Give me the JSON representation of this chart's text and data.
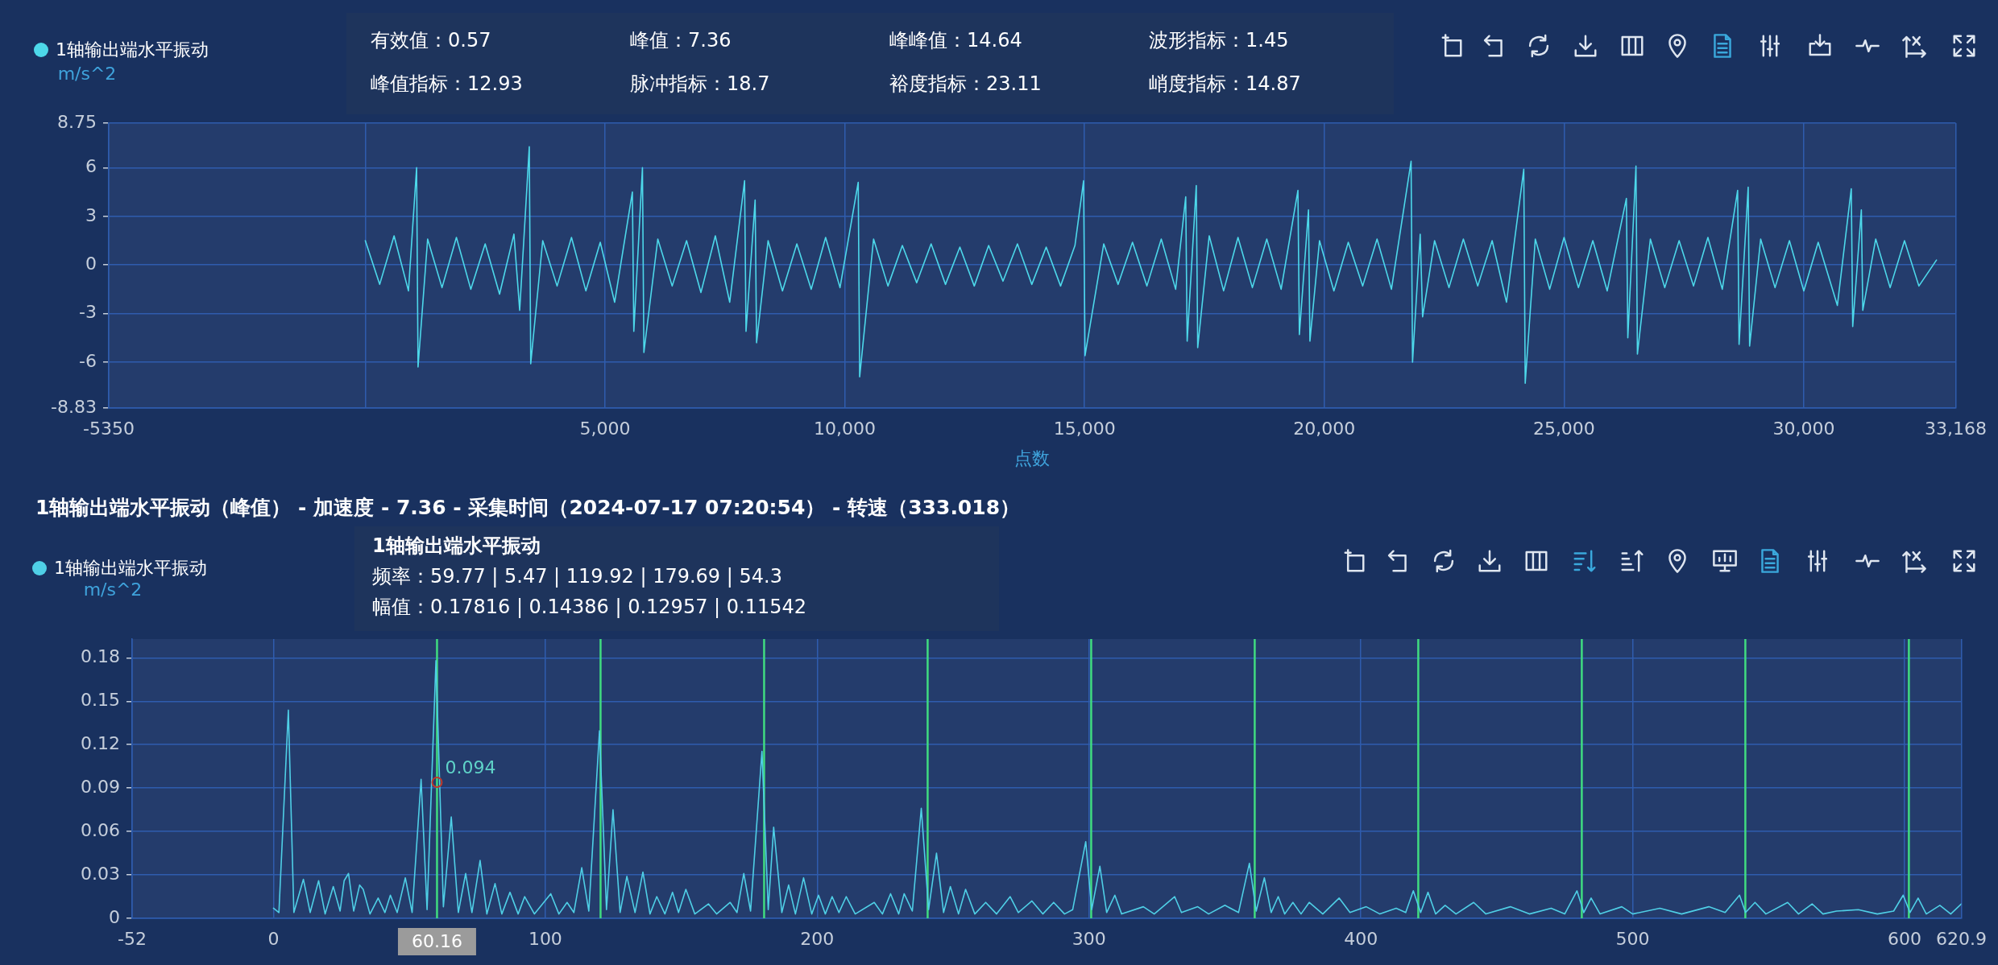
{
  "chart_data": [
    {
      "type": "line",
      "legend": "top left",
      "ylabel": "m/s^2",
      "xlabel": "点数",
      "marker": "none",
      "grid": true,
      "xlim": [
        -5350,
        33168
      ],
      "xticks": [
        -5350,
        {
          "value": 0,
          "label": null
        },
        {
          "value": 5000,
          "label": "5,000"
        },
        {
          "value": 10000,
          "label": "10,000"
        },
        {
          "value": 15000,
          "label": "15,000"
        },
        {
          "value": 20000,
          "label": "20,000"
        },
        {
          "value": 25000,
          "label": "25,000"
        },
        {
          "value": 30000,
          "label": "30,000"
        },
        {
          "value": 33168,
          "label": "33,168"
        }
      ],
      "ylim": [
        -8.83,
        8.75
      ],
      "yticks": [
        -8.83,
        -6,
        -3,
        0,
        3,
        6,
        8.75
      ],
      "x": [
        0,
        300,
        600,
        900,
        1070,
        1100,
        1300,
        1600,
        1900,
        2200,
        2500,
        2800,
        3100,
        3220,
        3420,
        3450,
        3700,
        4000,
        4300,
        4600,
        4900,
        5200,
        5570,
        5600,
        5780,
        5810,
        6100,
        6400,
        6700,
        7000,
        7300,
        7600,
        7910,
        7940,
        8130,
        8160,
        8400,
        8700,
        9000,
        9300,
        9600,
        9900,
        10280,
        10310,
        10600,
        10900,
        11200,
        11500,
        11800,
        12100,
        12400,
        12700,
        13000,
        13300,
        13600,
        13900,
        14200,
        14500,
        14800,
        14980,
        15010,
        15400,
        15700,
        16000,
        16300,
        16600,
        16900,
        17110,
        17140,
        17330,
        17360,
        17600,
        17900,
        18200,
        18500,
        18800,
        19100,
        19450,
        19480,
        19670,
        19700,
        19900,
        20200,
        20500,
        20800,
        21100,
        21400,
        21810,
        21840,
        22000,
        22050,
        22300,
        22600,
        22900,
        23200,
        23500,
        23800,
        24160,
        24190,
        24400,
        24700,
        25000,
        25300,
        25600,
        25900,
        26300,
        26330,
        26500,
        26530,
        26800,
        27100,
        27400,
        27700,
        28000,
        28300,
        28620,
        28650,
        28840,
        28870,
        29100,
        29400,
        29700,
        30000,
        30300,
        30700,
        30990,
        31020,
        31200,
        31230,
        31500,
        31800,
        32100,
        32400,
        32767
      ],
      "series": [
        {
          "name": "1轴输出端水平振动",
          "color": "#4dd8ea",
          "values": [
            1.5,
            -1.2,
            1.8,
            -1.6,
            6.0,
            -6.3,
            1.6,
            -1.4,
            1.7,
            -1.5,
            1.3,
            -1.8,
            1.9,
            -2.8,
            7.3,
            -6.1,
            1.5,
            -1.3,
            1.7,
            -1.6,
            1.4,
            -2.3,
            4.5,
            -4.1,
            6.0,
            -5.4,
            1.6,
            -1.3,
            1.5,
            -1.7,
            1.8,
            -2.3,
            5.2,
            -4.1,
            4.0,
            -4.8,
            1.5,
            -1.6,
            1.3,
            -1.5,
            1.7,
            -1.4,
            5.1,
            -6.9,
            1.6,
            -1.3,
            1.2,
            -1.1,
            1.3,
            -1.2,
            1.1,
            -1.3,
            1.2,
            -1.0,
            1.3,
            -1.2,
            1.1,
            -1.3,
            1.2,
            5.2,
            -5.6,
            1.3,
            -1.2,
            1.4,
            -1.3,
            1.6,
            -1.5,
            4.2,
            -4.7,
            4.9,
            -5.1,
            1.8,
            -1.6,
            1.7,
            -1.4,
            1.6,
            -1.5,
            4.6,
            -4.3,
            3.4,
            -4.7,
            1.5,
            -1.6,
            1.4,
            -1.3,
            1.6,
            -1.5,
            6.4,
            -6.0,
            1.9,
            -3.2,
            1.5,
            -1.4,
            1.6,
            -1.3,
            1.5,
            -2.3,
            5.9,
            -7.3,
            1.6,
            -1.5,
            1.7,
            -1.4,
            1.5,
            -1.6,
            4.1,
            -4.5,
            6.1,
            -5.5,
            1.6,
            -1.4,
            1.5,
            -1.3,
            1.7,
            -1.5,
            4.6,
            -4.9,
            4.8,
            -5.0,
            1.6,
            -1.4,
            1.5,
            -1.6,
            1.4,
            -2.5,
            4.7,
            -3.8,
            3.4,
            -2.8,
            1.6,
            -1.4,
            1.5,
            -1.3,
            0.3
          ]
        }
      ],
      "annotations": [
        "有效值：0.57",
        "峰值：7.36",
        "峰峰值：14.64",
        "波形指标：1.45",
        "峰值指标：12.93",
        "脉冲指标：18.7",
        "裕度指标：23.11",
        "峭度指标：14.87"
      ]
    },
    {
      "type": "line",
      "title": "1轴输出端水平振动（峰值） - 加速度 - 7.36 - 采集时间（2024-07-17 07:20:54） - 转速（333.018）",
      "legend": "top left",
      "ylabel": "m/s^2",
      "marker": "none",
      "grid": true,
      "xlim": [
        -52,
        620.9
      ],
      "xticks": [
        -52,
        0,
        100,
        200,
        300,
        400,
        500,
        600,
        620.9
      ],
      "ylim": [
        0,
        0.193
      ],
      "yticks": [
        0,
        0.03,
        0.06,
        0.09,
        0.12,
        0.15,
        0.18
      ],
      "x": [
        0,
        2,
        5.47,
        7.5,
        11,
        13.5,
        16.6,
        19,
        22,
        24.5,
        26,
        27.6,
        29.5,
        31.7,
        33,
        35.5,
        38.5,
        41,
        43,
        45.5,
        48.5,
        51,
        54.3,
        56.5,
        59.77,
        62.5,
        65.4,
        68,
        70.7,
        73,
        76,
        78.5,
        81.5,
        84,
        87,
        90,
        92.4,
        96,
        102,
        105,
        108,
        110.5,
        113.4,
        116,
        119.92,
        122.5,
        124.9,
        127.5,
        130,
        133,
        135.9,
        138.5,
        141,
        144,
        146.8,
        149,
        151.7,
        155,
        160,
        163,
        168,
        170.5,
        173,
        175.5,
        179.69,
        182,
        184,
        187,
        189.5,
        192,
        195,
        198,
        200.5,
        203,
        205.5,
        208,
        210.7,
        214,
        221,
        224,
        227,
        230,
        232,
        235,
        238.3,
        241,
        243.9,
        246.5,
        249,
        252,
        254.6,
        258,
        262,
        266,
        271,
        274,
        279,
        283,
        287,
        291,
        294,
        298.8,
        301,
        304,
        306.5,
        309.5,
        312,
        320,
        324,
        331.5,
        334,
        340,
        344,
        350,
        355,
        359,
        361.5,
        364.5,
        367,
        369.6,
        372,
        375,
        378,
        381,
        386,
        392,
        396,
        402,
        407,
        413,
        416.5,
        419.3,
        422,
        424.7,
        427.5,
        431,
        435,
        441.5,
        446,
        455,
        462,
        470,
        475,
        479.5,
        482,
        484.7,
        488,
        496,
        500,
        510,
        518,
        528,
        534,
        539.3,
        541.5,
        545,
        549,
        557,
        561,
        566,
        570,
        575,
        583,
        590,
        596,
        599.5,
        602,
        605,
        608,
        613,
        617,
        620.9
      ],
      "series": [
        {
          "name": "1轴输出端水平振动",
          "color": "#4fcfe6",
          "values": [
            0.007,
            0.004,
            0.14386,
            0.004,
            0.027,
            0.004,
            0.026,
            0.003,
            0.022,
            0.005,
            0.026,
            0.031,
            0.005,
            0.023,
            0.02,
            0.003,
            0.014,
            0.004,
            0.016,
            0.004,
            0.028,
            0.004,
            0.096,
            0.006,
            0.17816,
            0.008,
            0.07,
            0.004,
            0.031,
            0.004,
            0.04,
            0.003,
            0.024,
            0.003,
            0.018,
            0.003,
            0.015,
            0.003,
            0.017,
            0.003,
            0.011,
            0.004,
            0.035,
            0.005,
            0.12957,
            0.006,
            0.075,
            0.004,
            0.029,
            0.004,
            0.032,
            0.003,
            0.015,
            0.003,
            0.018,
            0.004,
            0.02,
            0.003,
            0.01,
            0.003,
            0.011,
            0.004,
            0.031,
            0.005,
            0.11542,
            0.006,
            0.063,
            0.004,
            0.023,
            0.003,
            0.028,
            0.003,
            0.016,
            0.003,
            0.015,
            0.004,
            0.015,
            0.003,
            0.011,
            0.003,
            0.017,
            0.003,
            0.017,
            0.005,
            0.076,
            0.006,
            0.045,
            0.004,
            0.022,
            0.003,
            0.02,
            0.003,
            0.011,
            0.003,
            0.015,
            0.004,
            0.012,
            0.003,
            0.011,
            0.003,
            0.006,
            0.053,
            0.006,
            0.036,
            0.004,
            0.016,
            0.003,
            0.008,
            0.003,
            0.015,
            0.004,
            0.008,
            0.003,
            0.009,
            0.004,
            0.038,
            0.005,
            0.028,
            0.004,
            0.015,
            0.003,
            0.011,
            0.003,
            0.011,
            0.003,
            0.014,
            0.004,
            0.008,
            0.003,
            0.007,
            0.004,
            0.019,
            0.004,
            0.018,
            0.003,
            0.009,
            0.003,
            0.011,
            0.003,
            0.008,
            0.003,
            0.007,
            0.003,
            0.019,
            0.004,
            0.014,
            0.003,
            0.008,
            0.003,
            0.007,
            0.003,
            0.008,
            0.004,
            0.016,
            0.004,
            0.011,
            0.003,
            0.011,
            0.003,
            0.01,
            0.003,
            0.005,
            0.006,
            0.003,
            0.005,
            0.016,
            0.004,
            0.014,
            0.003,
            0.009,
            0.003,
            0.01
          ]
        }
      ],
      "ref_lines": [
        {
          "axis": "x",
          "value": 60.16,
          "label": "60.16",
          "color": "#40dc80"
        },
        {
          "axis": "x",
          "value": 120.32,
          "color": "#40dc80"
        },
        {
          "axis": "x",
          "value": 180.48,
          "color": "#40dc80"
        },
        {
          "axis": "x",
          "value": 240.64,
          "color": "#40dc80"
        },
        {
          "axis": "x",
          "value": 300.8,
          "color": "#40dc80"
        },
        {
          "axis": "x",
          "value": 360.96,
          "color": "#40dc80"
        },
        {
          "axis": "x",
          "value": 421.12,
          "color": "#40dc80"
        },
        {
          "axis": "x",
          "value": 481.28,
          "color": "#40dc80"
        },
        {
          "axis": "x",
          "value": 541.44,
          "color": "#40dc80"
        },
        {
          "axis": "x",
          "value": 601.6,
          "color": "#40dc80"
        }
      ],
      "annotations": [
        "1轴输出端水平振动",
        "频率：59.77 | 5.47 | 119.92 | 179.69 | 54.3",
        "幅值：0.17816 | 0.14386 | 0.12957 | 0.11542",
        {
          "text": "0.094",
          "x": 60.16,
          "y": 0.094
        }
      ]
    }
  ]
}
